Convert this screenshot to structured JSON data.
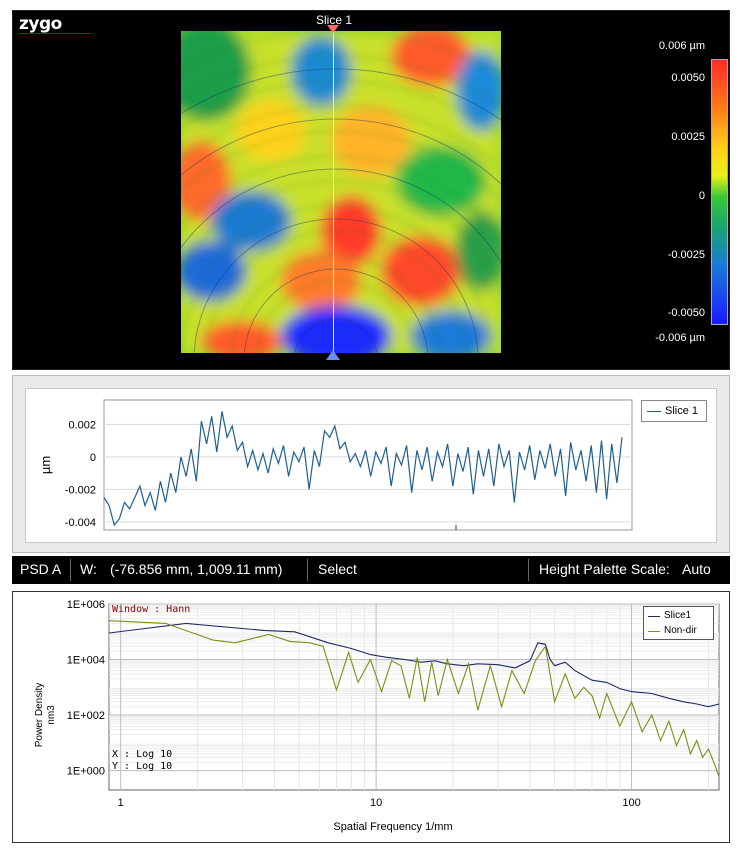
{
  "app": {
    "logo": "zygo"
  },
  "surface_map": {
    "slice_label": "Slice 1",
    "colorbar": {
      "labels": [
        "0.006 µm",
        "0.0050",
        "0.0025",
        "0",
        "-0.0025",
        "-0.0050",
        "-0.006 µm"
      ],
      "colors": [
        "#ff2a2a",
        "#ffd21a",
        "#38c838",
        "#1a7ad8",
        "#1a1aff"
      ]
    }
  },
  "profile_chart": {
    "chart_data": {
      "type": "line",
      "ylabel": "µm",
      "ylim": [
        -0.0045,
        0.0035
      ],
      "yticks": [
        "0.002",
        "0",
        "-0.002",
        "-0.004"
      ],
      "legend": "top-right",
      "series": [
        {
          "name": "Slice 1",
          "color": "#1f5f8f",
          "values": [
            -0.0025,
            -0.003,
            -0.0042,
            -0.0038,
            -0.0028,
            -0.0032,
            -0.0025,
            -0.0018,
            -0.003,
            -0.0022,
            -0.0033,
            -0.0015,
            -0.0028,
            -0.001,
            -0.0022,
            0.0,
            -0.0012,
            0.0005,
            -0.0015,
            0.0022,
            0.0008,
            0.0025,
            0.0003,
            0.0028,
            0.0012,
            0.0019,
            0.0004,
            0.0009,
            -0.0006,
            0.0004,
            -0.0008,
            0.0002,
            -0.001,
            0.0005,
            -0.0004,
            0.0007,
            -0.0012,
            0.0003,
            -0.0003,
            0.0006,
            -0.002,
            0.0004,
            -0.0006,
            0.0016,
            0.0012,
            0.0019,
            0.0005,
            0.0009,
            -0.0003,
            0.0002,
            -0.0006,
            0.0004,
            -0.0012,
            0.0003,
            -0.0004,
            0.0006,
            -0.0018,
            0.0002,
            -0.0005,
            0.0007,
            -0.0022,
            0.0004,
            -0.0008,
            0.0006,
            -0.0015,
            0.0003,
            -0.0006,
            0.0008,
            -0.0018,
            0.0002,
            -0.0009,
            0.0006,
            -0.0023,
            0.0004,
            -0.0012,
            0.0005,
            -0.0018,
            0.0008,
            -0.0006,
            0.0004,
            -0.0028,
            0.0003,
            -0.0008,
            0.0007,
            -0.0014,
            0.0004,
            -0.0007,
            0.0008,
            -0.0012,
            0.0005,
            -0.0024,
            0.0009,
            -0.0008,
            0.0004,
            -0.0015,
            0.0007,
            -0.0022,
            0.001,
            -0.0026,
            0.0008,
            -0.0016,
            0.0012
          ]
        }
      ]
    }
  },
  "status_bar": {
    "mode": "PSD A",
    "w_label": "W:",
    "w_value": "(-76.856 mm, 1,009.11 mm)",
    "tool": "Select",
    "palette_label": "Height Palette Scale:",
    "palette_value": "Auto"
  },
  "psd_chart": {
    "window_label": "Window : Hann",
    "scale_x": "X : Log 10",
    "scale_y": "Y : Log 10",
    "chart_data": {
      "type": "line",
      "title": "",
      "xlabel": "Spatial Frequency 1/mm",
      "ylabel": "Power Density nm3",
      "ylabel_lines": [
        "Power Density",
        "nm3"
      ],
      "x_scale": "log",
      "y_scale": "log",
      "xlim": [
        0.9,
        220
      ],
      "ylim": [
        0.2,
        1000000
      ],
      "xticks": [
        {
          "value": 1,
          "label": "1"
        },
        {
          "value": 10,
          "label": "10"
        },
        {
          "value": 100,
          "label": "100"
        }
      ],
      "yticks": [
        {
          "value": 1000000,
          "label": "1E+006"
        },
        {
          "value": 10000,
          "label": "1E+004"
        },
        {
          "value": 100,
          "label": "1E+002"
        },
        {
          "value": 1,
          "label": "1E+000"
        }
      ],
      "grid": true,
      "legend": "top-right",
      "series": [
        {
          "name": "Slice1",
          "color": "#1c2a66",
          "x": [
            0.9,
            1.8,
            3.7,
            4.8,
            6.5,
            8,
            9.5,
            11,
            13,
            15,
            17,
            19,
            22,
            25,
            30,
            35,
            40,
            43,
            46,
            48,
            50,
            55,
            60,
            70,
            80,
            90,
            100,
            120,
            140,
            160,
            180,
            200,
            220
          ],
          "y": [
            90000,
            200000,
            110000,
            100000,
            40000,
            25000,
            15000,
            12000,
            10000,
            8000,
            9000,
            7000,
            6000,
            7000,
            6500,
            5000,
            9000,
            40000,
            35000,
            10000,
            6000,
            8000,
            4000,
            1800,
            1500,
            900,
            700,
            600,
            400,
            300,
            250,
            200,
            250
          ]
        },
        {
          "name": "Non-dir",
          "color": "#7a8f14",
          "x": [
            0.9,
            1.5,
            2.3,
            2.8,
            3.8,
            4.6,
            5.5,
            6.2,
            7.0,
            7.8,
            8.5,
            9.5,
            10.5,
            11.5,
            12.5,
            13.5,
            14.5,
            15.5,
            16.5,
            17.5,
            19,
            21,
            23,
            25,
            28,
            31,
            34,
            38,
            42,
            46,
            50,
            55,
            60,
            65,
            70,
            75,
            80,
            90,
            100,
            110,
            120,
            130,
            140,
            150,
            160,
            170,
            180,
            190,
            200,
            210,
            220
          ],
          "y": [
            250000,
            200000,
            50000,
            40000,
            80000,
            45000,
            40000,
            30000,
            800,
            18000,
            1500,
            10000,
            700,
            9000,
            6000,
            400,
            12000,
            300,
            8000,
            500,
            10000,
            600,
            7000,
            150,
            6000,
            200,
            4000,
            600,
            9000,
            30000,
            300,
            3000,
            400,
            1000,
            500,
            80,
            600,
            40,
            300,
            25,
            100,
            12,
            60,
            8,
            30,
            4,
            12,
            3,
            6,
            2,
            0.6
          ]
        }
      ]
    }
  }
}
